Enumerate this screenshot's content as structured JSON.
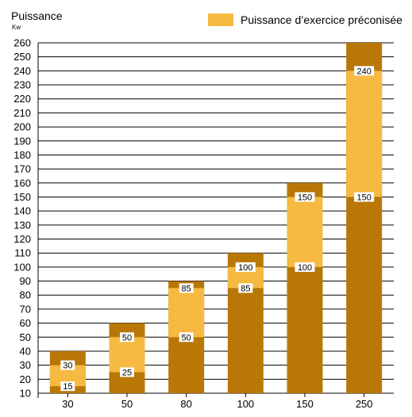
{
  "chart_data": {
    "type": "bar",
    "stacked_overlay": true,
    "ylabel": "Puissance",
    "yunit": "Kw",
    "ylim": [
      10,
      260
    ],
    "ytick_step": 10,
    "categories": [
      "30",
      "50",
      "80",
      "100",
      "150",
      "250"
    ],
    "series": [
      {
        "name": "",
        "role": "total",
        "values": [
          40,
          60,
          90,
          110,
          160,
          260
        ]
      },
      {
        "name": "Puissance d’exercice préconisée",
        "role": "recommended_range",
        "lower": [
          15,
          25,
          50,
          85,
          100,
          150
        ],
        "upper": [
          30,
          50,
          85,
          100,
          150,
          240
        ]
      }
    ],
    "legend": {
      "label": "Puissance d’exercice préconisée",
      "position": "top-right"
    },
    "grid": true,
    "colors": {
      "dark": "#B97706",
      "light": "#F6BA43",
      "grid": "#000000"
    }
  }
}
